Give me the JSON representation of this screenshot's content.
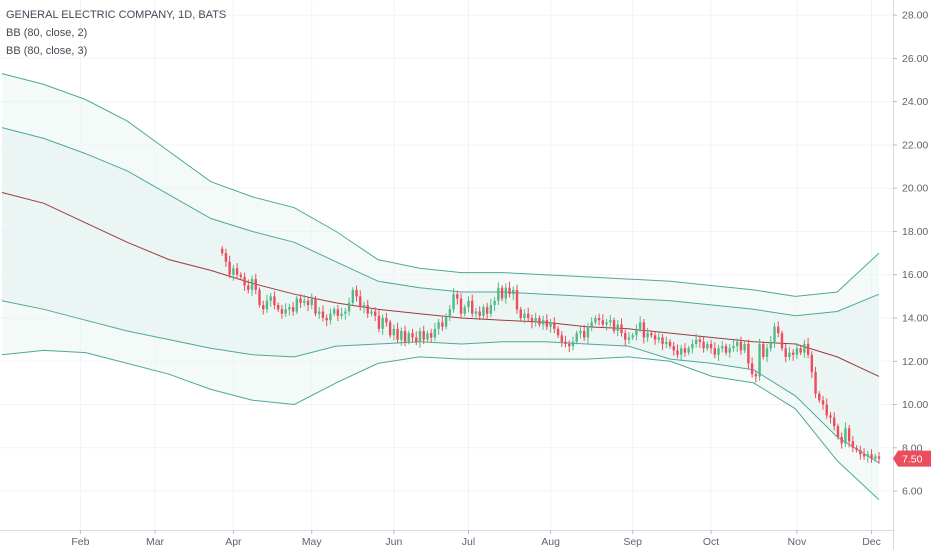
{
  "header": {
    "symbol_line": "GENERAL ELECTRIC COMPANY, 1D, BATS",
    "indicator_1": "BB (80, close, 2)",
    "indicator_2": "BB (80, close, 3)"
  },
  "colors": {
    "up": "#53b987",
    "down": "#eb4d5c",
    "band": "#4fa89b",
    "basis": "#9c3a3f",
    "fill": "#e9f5f3",
    "grid": "#f0f3fa",
    "tag": "#eb4d5c"
  },
  "chart_data": {
    "type": "candlestick",
    "title": "GENERAL ELECTRIC COMPANY, 1D, BATS",
    "ylim": [
      4.2,
      28.7
    ],
    "y_ticks": [
      "6.00",
      "8.00",
      "10.00",
      "12.00",
      "14.00",
      "16.00",
      "18.00",
      "20.00",
      "22.00",
      "24.00",
      "26.00",
      "28.00"
    ],
    "x_tick_labels": [
      "Feb",
      "Mar",
      "Apr",
      "May",
      "Jun",
      "Jul",
      "Aug",
      "Sep",
      "Oct",
      "Nov",
      "Dec"
    ],
    "x_tick_day_index": [
      21,
      41,
      62,
      83,
      105,
      125,
      147,
      169,
      190,
      213,
      233
    ],
    "last_price": "7.50",
    "last_price_value": 7.5,
    "close": [
      17.0,
      16.6,
      16.0,
      16.3,
      16.0,
      15.9,
      15.5,
      15.3,
      15.8,
      15.3,
      14.6,
      14.4,
      14.8,
      15.0,
      14.6,
      14.4,
      14.2,
      14.4,
      14.5,
      14.3,
      14.9,
      14.7,
      14.8,
      14.6,
      14.9,
      14.2,
      14.3,
      14.0,
      13.9,
      14.2,
      14.4,
      14.1,
      14.2,
      14.3,
      14.7,
      15.3,
      15.0,
      14.5,
      14.6,
      14.2,
      14.3,
      14.1,
      13.5,
      14.0,
      13.8,
      13.2,
      13.5,
      13.0,
      13.4,
      12.9,
      13.3,
      13.1,
      12.9,
      13.4,
      13.0,
      13.3,
      13.1,
      13.5,
      13.8,
      13.6,
      14.1,
      14.4,
      15.1,
      14.9,
      14.2,
      14.5,
      14.8,
      14.2,
      14.3,
      14.1,
      14.5,
      14.2,
      14.6,
      14.8,
      15.4,
      14.9,
      15.4,
      15.1,
      15.3,
      14.4,
      14.0,
      14.2,
      14.0,
      13.8,
      14.0,
      13.7,
      13.9,
      13.6,
      13.8,
      13.5,
      13.2,
      12.9,
      12.8,
      12.7,
      12.9,
      13.3,
      13.4,
      13.1,
      13.6,
      13.8,
      14.0,
      13.9,
      13.7,
      13.8,
      13.9,
      13.4,
      13.7,
      13.3,
      13.0,
      13.1,
      13.2,
      13.5,
      13.8,
      13.1,
      13.3,
      13.2,
      13.0,
      13.1,
      12.8,
      12.9,
      12.7,
      12.5,
      12.3,
      12.6,
      12.4,
      12.6,
      12.8,
      13.0,
      12.9,
      12.6,
      12.8,
      12.6,
      12.3,
      12.6,
      12.7,
      12.4,
      12.6,
      12.7,
      12.9,
      12.5,
      12.8,
      11.9,
      11.4,
      11.3,
      12.8,
      12.2,
      12.6,
      12.9,
      13.6,
      13.3,
      12.6,
      12.2,
      12.4,
      12.3,
      12.6,
      12.4,
      12.8,
      12.3,
      11.5,
      10.5,
      10.2,
      10.0,
      9.5,
      9.4,
      9.0,
      8.5,
      8.2,
      8.9,
      8.3,
      8.0,
      7.9,
      7.7,
      7.6,
      7.7,
      7.5,
      7.6,
      7.5
    ],
    "open": [
      17.2,
      17.0,
      16.6,
      16.0,
      16.3,
      16.0,
      15.9,
      15.5,
      15.3,
      15.8,
      15.3,
      14.6,
      14.4,
      14.8,
      15.0,
      14.6,
      14.4,
      14.2,
      14.4,
      14.5,
      14.3,
      14.9,
      14.7,
      14.8,
      14.6,
      14.9,
      14.2,
      14.3,
      14.0,
      13.9,
      14.2,
      14.4,
      14.1,
      14.2,
      14.3,
      14.7,
      15.3,
      15.0,
      14.5,
      14.6,
      14.2,
      14.3,
      14.1,
      13.5,
      14.0,
      13.8,
      13.2,
      13.5,
      13.0,
      13.4,
      12.9,
      13.3,
      13.1,
      12.9,
      13.4,
      13.0,
      13.3,
      13.1,
      13.5,
      13.8,
      13.6,
      14.1,
      14.4,
      15.1,
      14.9,
      14.2,
      14.5,
      14.8,
      14.2,
      14.3,
      14.1,
      14.5,
      14.2,
      14.6,
      14.8,
      15.4,
      14.9,
      15.4,
      15.1,
      15.3,
      14.4,
      14.0,
      14.2,
      14.0,
      13.8,
      14.0,
      13.7,
      13.9,
      13.6,
      13.8,
      13.5,
      13.2,
      12.9,
      12.8,
      12.7,
      12.9,
      13.3,
      13.4,
      13.1,
      13.6,
      13.8,
      14.0,
      13.9,
      13.7,
      13.8,
      13.9,
      13.4,
      13.7,
      13.3,
      13.0,
      13.1,
      13.2,
      13.5,
      13.8,
      13.1,
      13.3,
      13.2,
      13.0,
      13.1,
      12.8,
      12.9,
      12.7,
      12.5,
      12.3,
      12.6,
      12.4,
      12.6,
      12.8,
      13.0,
      12.9,
      12.6,
      12.8,
      12.6,
      12.3,
      12.6,
      12.7,
      12.4,
      12.6,
      12.7,
      12.9,
      12.5,
      12.8,
      11.9,
      11.4,
      11.3,
      12.8,
      12.2,
      12.6,
      12.9,
      13.6,
      13.3,
      12.6,
      12.2,
      12.4,
      12.3,
      12.6,
      12.4,
      12.8,
      12.3,
      11.5,
      10.5,
      10.2,
      10.0,
      9.5,
      9.4,
      9.0,
      8.5,
      8.2,
      8.9,
      8.3,
      8.0,
      7.9,
      7.7,
      7.6,
      7.7,
      7.5,
      7.6
    ],
    "upper_bb3": [
      25.3,
      24.8,
      24.1,
      23.1,
      21.7,
      20.3,
      19.6,
      19.1,
      18.0,
      16.7,
      16.3,
      16.1,
      16.1,
      16.0,
      15.9,
      15.8,
      15.7,
      15.5,
      15.3,
      15.0,
      15.2,
      17.0
    ],
    "upper_bb2": [
      22.8,
      22.3,
      21.6,
      20.8,
      19.7,
      18.6,
      18.0,
      17.5,
      16.6,
      15.7,
      15.4,
      15.2,
      15.2,
      15.1,
      15.0,
      14.9,
      14.8,
      14.6,
      14.4,
      14.1,
      14.3,
      15.1
    ],
    "basis": [
      19.8,
      19.3,
      18.4,
      17.5,
      16.7,
      16.2,
      15.6,
      15.1,
      14.7,
      14.4,
      14.2,
      14.0,
      13.9,
      13.8,
      13.6,
      13.5,
      13.3,
      13.1,
      12.9,
      12.8,
      12.2,
      11.3
    ],
    "lower_bb2": [
      14.8,
      14.4,
      13.9,
      13.4,
      13.0,
      12.6,
      12.3,
      12.2,
      12.7,
      12.8,
      12.9,
      12.8,
      12.9,
      12.9,
      12.8,
      12.7,
      12.1,
      11.9,
      11.6,
      10.4,
      8.5,
      7.3
    ],
    "lower_bb3": [
      12.3,
      12.5,
      12.4,
      11.9,
      11.4,
      10.7,
      10.2,
      10.0,
      11.0,
      11.9,
      12.2,
      12.1,
      12.1,
      12.1,
      12.1,
      12.2,
      12.0,
      11.3,
      11.0,
      9.8,
      7.4,
      5.6
    ]
  }
}
